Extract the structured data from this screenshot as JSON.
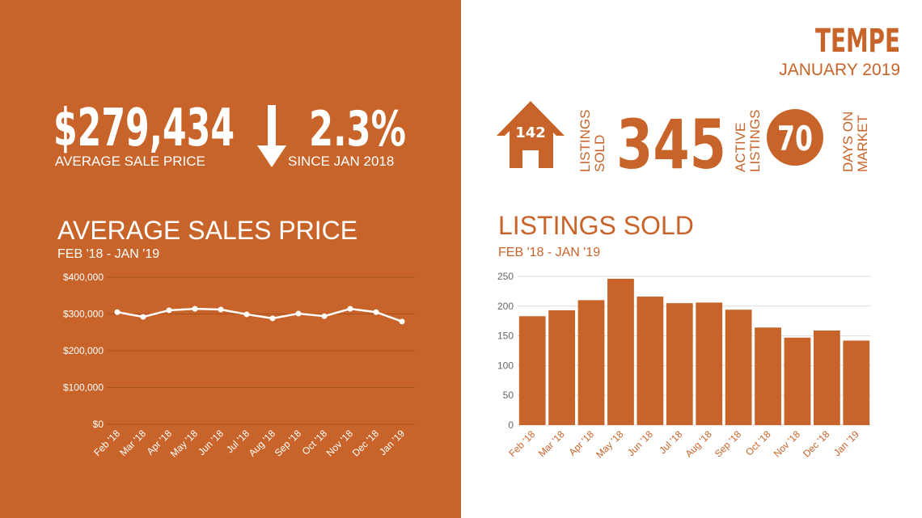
{
  "header": {
    "city": "TEMPE",
    "period": "JANUARY 2019"
  },
  "stats": {
    "average_price": "$279,434",
    "average_price_label": "AVERAGE SALE PRICE",
    "change": "2.3%",
    "change_label": "SINCE JAN 2018",
    "listings_sold": "142",
    "listings_sold_label": [
      "LISTINGS",
      "SOLD"
    ],
    "active": "345",
    "active_label": [
      "ACTIVE",
      "LISTINGS"
    ],
    "days": "70",
    "days_label": [
      "DAYS ON",
      "MARKET"
    ]
  },
  "chart_data": [
    {
      "type": "line",
      "title": "AVERAGE SALES PRICE",
      "subtitle": "FEB '18 - JAN '19",
      "color": "#ffffff",
      "categories": [
        "Feb '18",
        "Mar '18",
        "Apr '18",
        "May '18",
        "Jun '18",
        "Jul '18",
        "Aug '18",
        "Sep '18",
        "Oct '18",
        "Nov '18",
        "Dec '18",
        "Jan '19"
      ],
      "values": [
        305000,
        292000,
        310000,
        314000,
        312000,
        299000,
        288000,
        301000,
        294000,
        314000,
        305000,
        279434
      ],
      "ylim": [
        0,
        400000
      ],
      "yticks": [
        {
          "value": 0,
          "label": "$0"
        },
        {
          "value": 100000,
          "label": "$100,000"
        },
        {
          "value": 200000,
          "label": "$200,000"
        },
        {
          "value": 300000,
          "label": "$300,000"
        },
        {
          "value": 400000,
          "label": "$400,000"
        }
      ],
      "grid": true
    },
    {
      "type": "bar",
      "title": "LISTINGS SOLD",
      "subtitle": "FEB '18 - JAN '19",
      "color": "#c8642a",
      "categories": [
        "Feb '18",
        "Mar '18",
        "Apr '18",
        "May '18",
        "Jun '18",
        "Jul '18",
        "Aug '18",
        "Sep '18",
        "Oct '18",
        "Nov '18",
        "Dec '18",
        "Jan '19"
      ],
      "values": [
        183,
        193,
        210,
        246,
        216,
        205,
        206,
        194,
        164,
        147,
        159,
        142
      ],
      "ylim": [
        0,
        250
      ],
      "yticks": [
        0,
        50,
        100,
        150,
        200,
        250
      ],
      "grid": true
    }
  ]
}
